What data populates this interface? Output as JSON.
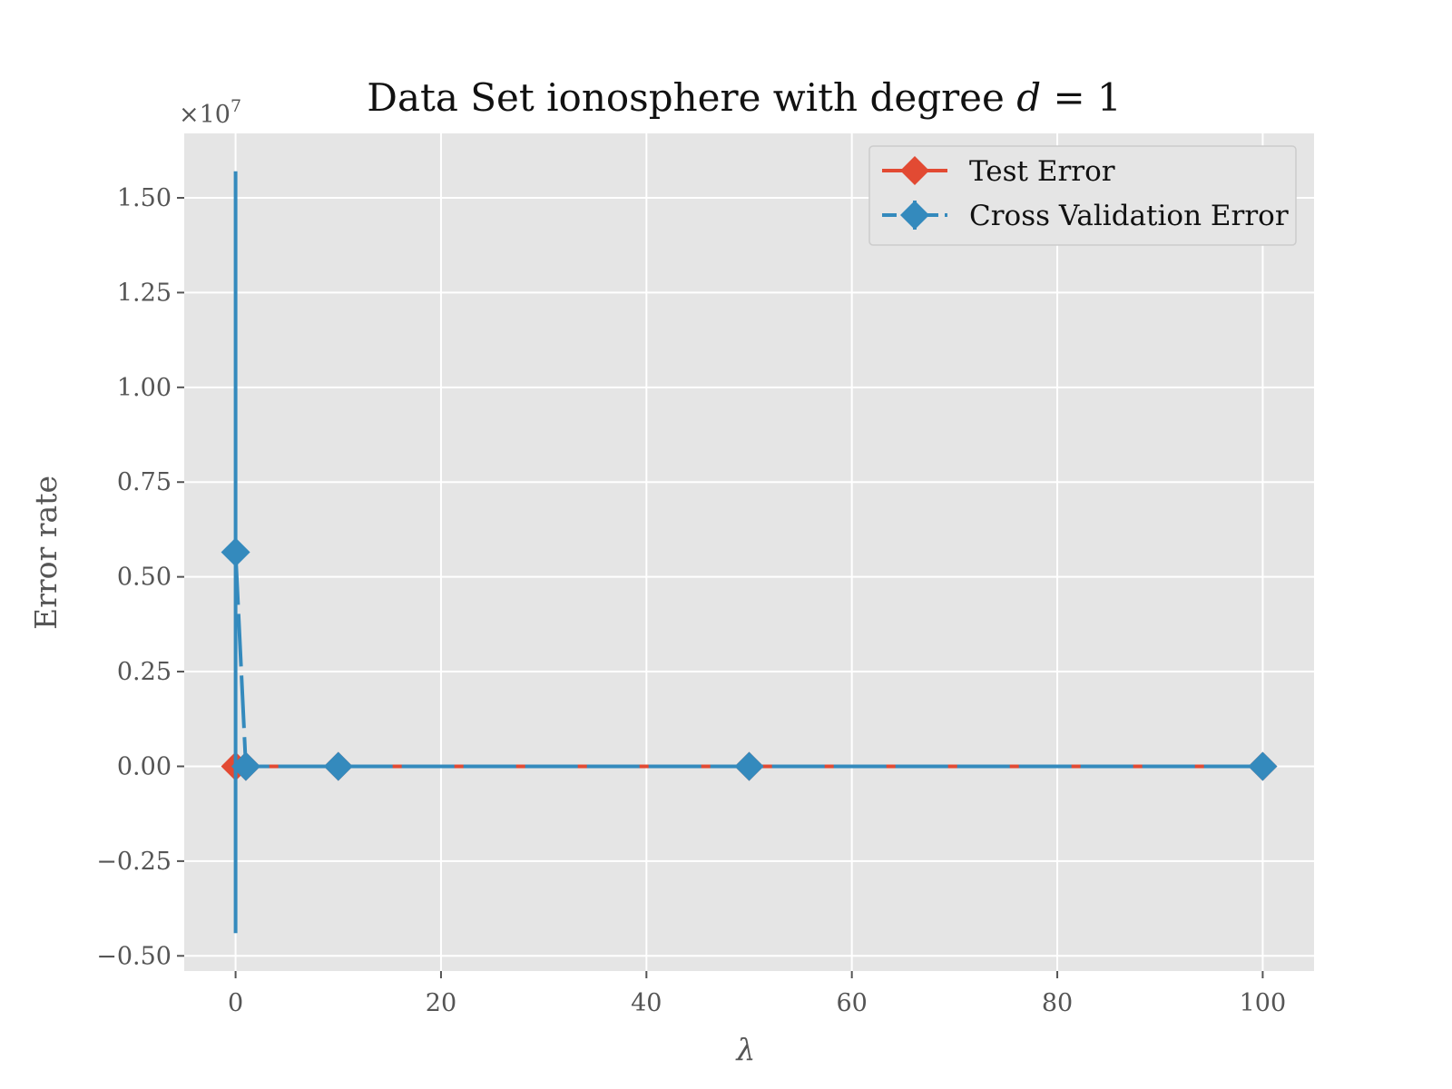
{
  "chart_data": {
    "type": "line",
    "title": "Data Set ionosphere with degree d = 1",
    "title_parts": {
      "text": "Data Set ionosphere with degree ",
      "var": "d",
      "rest": " = 1"
    },
    "xlabel": "λ",
    "ylabel": "Error rate",
    "y_offset_label": "×10",
    "y_offset_exponent": "7",
    "xlim": [
      -5,
      105
    ],
    "ylim": [
      -0.54,
      1.67
    ],
    "x_ticks": [
      0,
      20,
      40,
      60,
      80,
      100
    ],
    "x_tick_labels": [
      "0",
      "20",
      "40",
      "60",
      "80",
      "100"
    ],
    "y_ticks": [
      -0.5,
      -0.25,
      0.0,
      0.25,
      0.5,
      0.75,
      1.0,
      1.25,
      1.5
    ],
    "y_tick_labels": [
      "−0.50",
      "−0.25",
      "0.00",
      "0.25",
      "0.50",
      "0.75",
      "1.00",
      "1.25",
      "1.50"
    ],
    "grid": true,
    "legend_position": "top-right",
    "series": [
      {
        "name": "Test Error",
        "color": "#E24A33",
        "line_style": "solid",
        "marker": "diamond",
        "x": [
          0,
          1,
          10,
          50,
          100
        ],
        "y": [
          0.0,
          0.0,
          0.0,
          0.0,
          0.0
        ]
      },
      {
        "name": "Cross Validation Error",
        "color": "#348ABD",
        "line_style": "dashed",
        "marker": "diamond",
        "x": [
          0,
          1,
          10,
          50,
          100
        ],
        "y": [
          0.565,
          0.0,
          0.0,
          0.0,
          0.0
        ],
        "error": [
          1.005,
          0.0,
          0.0,
          0.0,
          0.0
        ]
      }
    ]
  }
}
